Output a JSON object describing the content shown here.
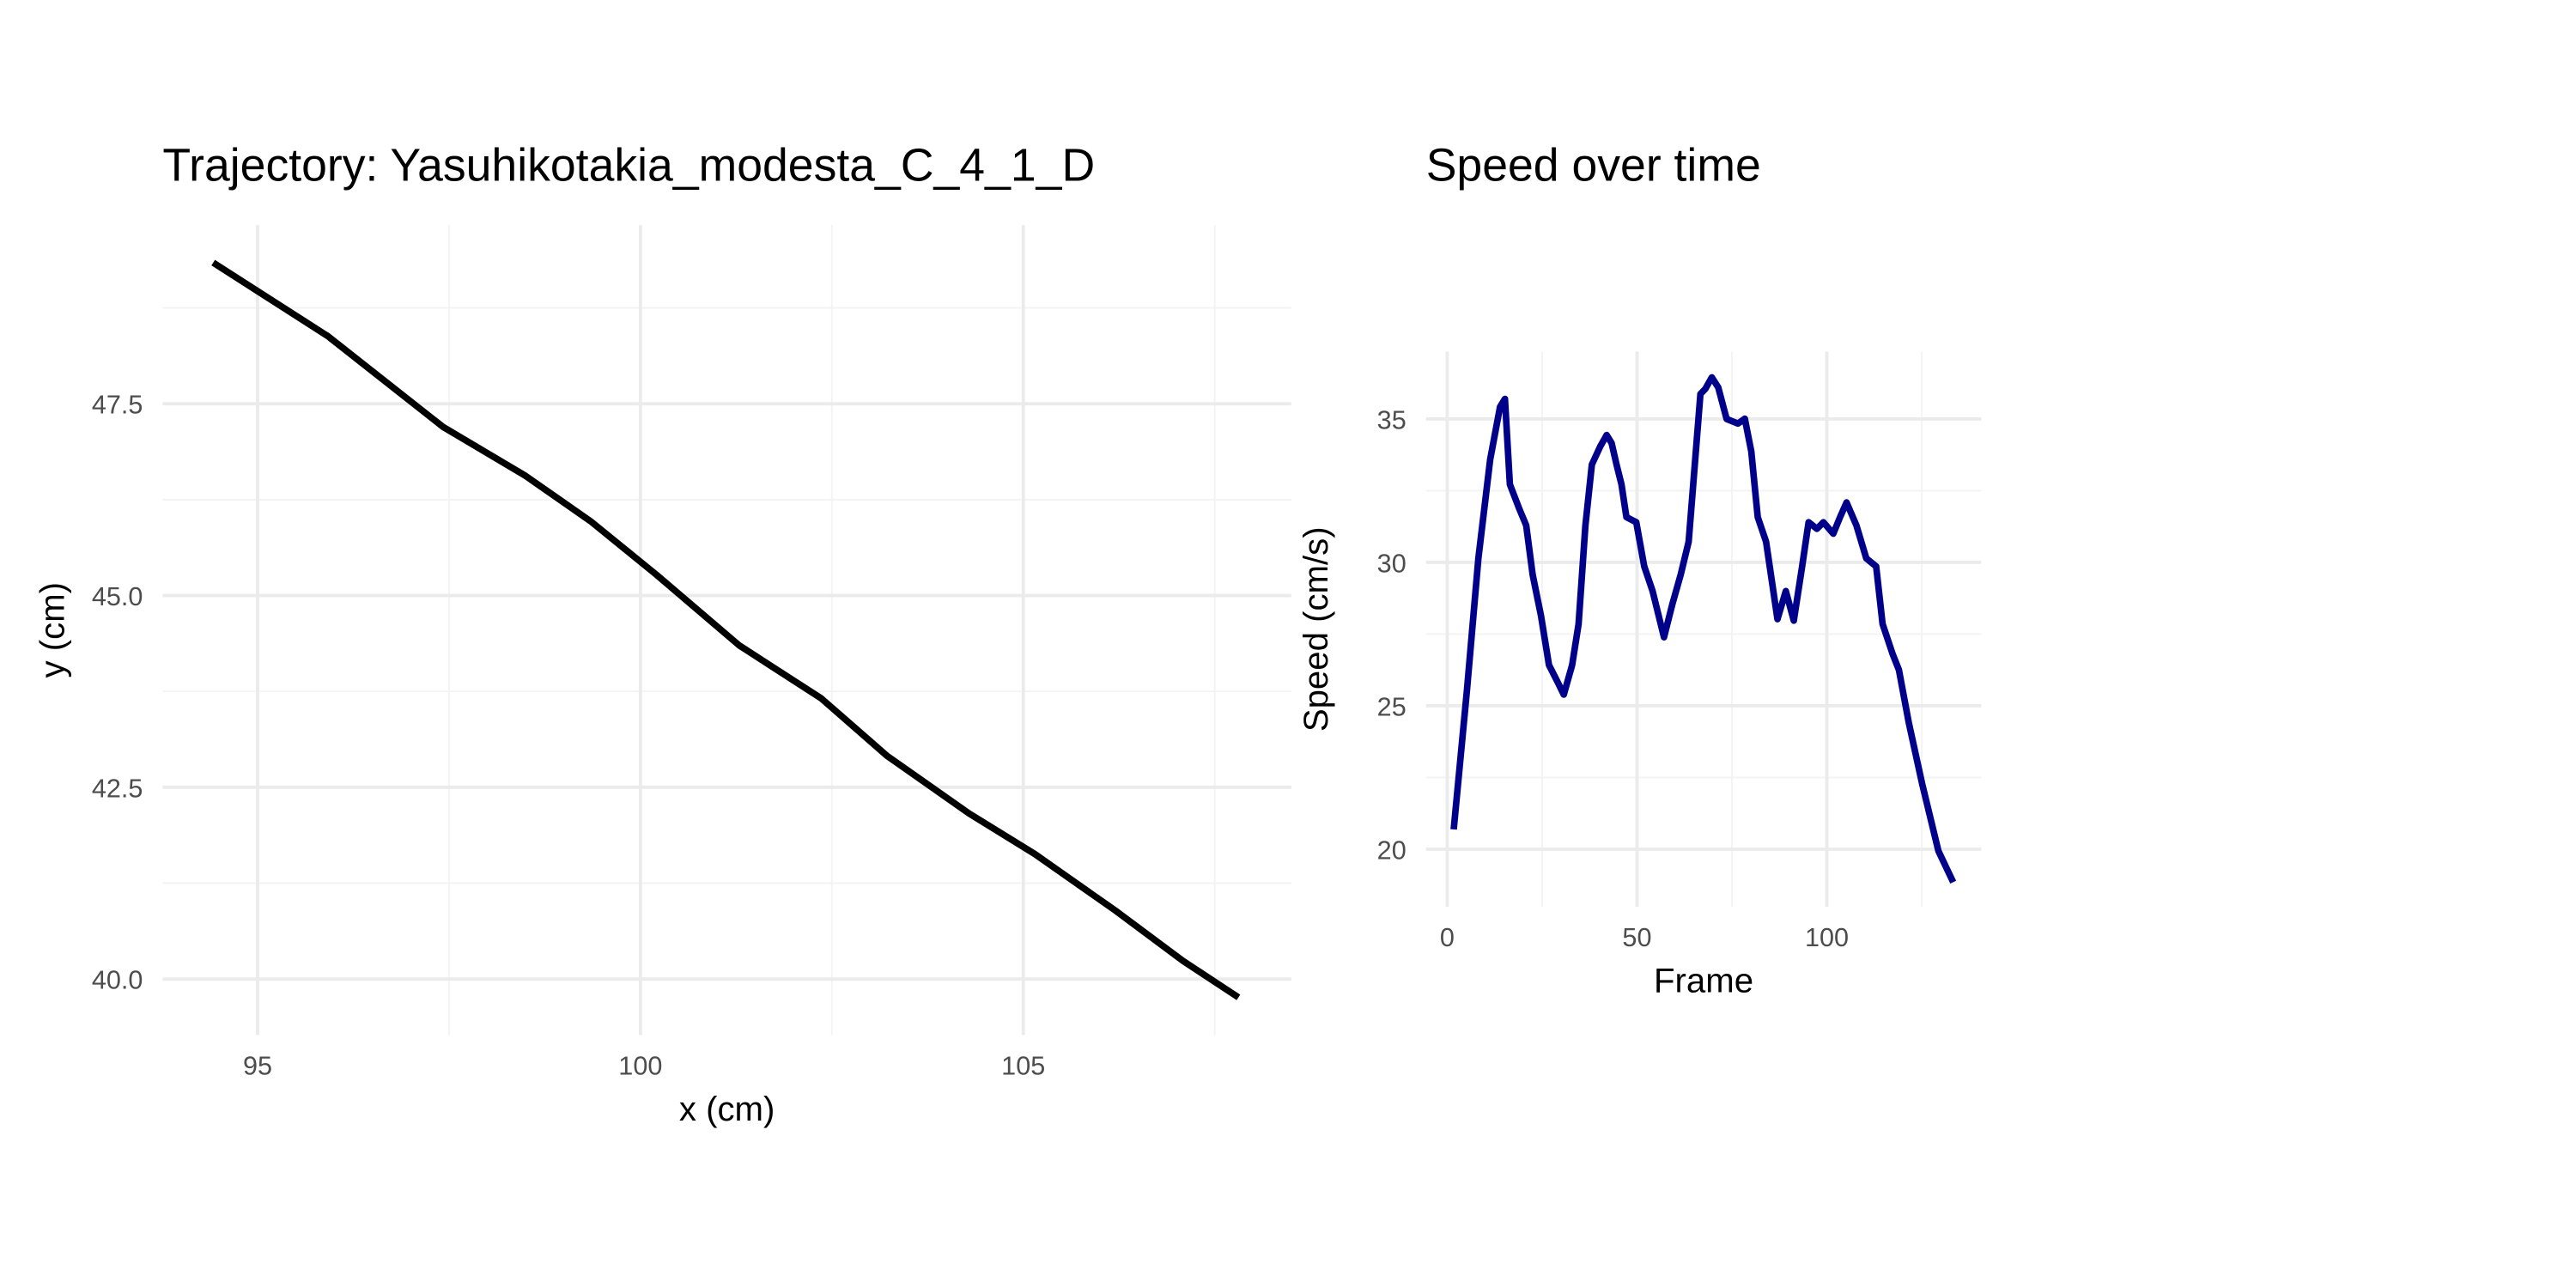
{
  "chart_data": [
    {
      "type": "line",
      "title": "Trajectory: Yasuhikotakia_modesta_C_4_1_D",
      "x_label": "x (cm)",
      "y_label": "y (cm)",
      "x": [
        94.42,
        95.92,
        97.42,
        98.5,
        99.36,
        100.21,
        101.29,
        102.36,
        103.22,
        104.29,
        105.15,
        106.22,
        107.08,
        107.81
      ],
      "values": [
        49.34,
        48.38,
        47.2,
        46.56,
        45.96,
        45.27,
        44.35,
        43.66,
        42.91,
        42.16,
        41.63,
        40.88,
        40.24,
        39.76
      ],
      "color": "#000000",
      "xlim": [
        93.76,
        108.5
      ],
      "ylim": [
        39.27,
        49.83
      ],
      "xticks": [
        95,
        100,
        105
      ],
      "yticks": [
        {
          "value": 40,
          "label": "40.0"
        },
        42.5,
        {
          "value": 45,
          "label": "45.0"
        },
        47.5
      ],
      "grid": true
    },
    {
      "type": "line",
      "title": "Speed over time",
      "x_label": "Frame",
      "y_label": "Speed (cm/s)",
      "x": [
        1.7,
        5.2,
        8.2,
        11.3,
        13.9,
        15.2,
        16.5,
        19,
        20.8,
        22.5,
        24.7,
        26.8,
        29,
        30.7,
        32.9,
        34.6,
        36.4,
        38.1,
        40.3,
        42,
        43.3,
        44.6,
        45.9,
        47.2,
        49.8,
        51.9,
        54.1,
        57.1,
        59.3,
        61.5,
        63.6,
        66.7,
        68,
        69.7,
        71.4,
        73.6,
        76.6,
        78.4,
        80.1,
        81.8,
        84,
        87,
        89.2,
        91.3,
        93.5,
        95.2,
        97.4,
        99.1,
        101.7,
        103.5,
        105.2,
        107.8,
        110.4,
        113,
        114.7,
        117.3,
        119,
        121.6,
        125.1,
        129.4,
        133.3
      ],
      "values": [
        20.69,
        25.56,
        30.14,
        33.58,
        35.42,
        35.7,
        32.72,
        31.86,
        31.29,
        29.57,
        28.14,
        26.42,
        25.85,
        25.39,
        26.42,
        27.85,
        31.29,
        33.41,
        34.04,
        34.44,
        34.16,
        33.41,
        32.72,
        31.58,
        31.4,
        29.86,
        29,
        27.39,
        28.54,
        29.57,
        30.72,
        35.87,
        36.05,
        36.45,
        36.1,
        35.0,
        34.84,
        35.01,
        33.87,
        31.58,
        30.72,
        28.02,
        29,
        27.97,
        29.86,
        31.4,
        31.17,
        31.4,
        31.0,
        31.58,
        32.09,
        31.29,
        30.14,
        29.86,
        27.85,
        26.82,
        26.25,
        24.41,
        22.29,
        19.94,
        18.85
      ],
      "color": "#00008b",
      "xlim": [
        -5.6,
        140.7
      ],
      "ylim": [
        17.99,
        37.35
      ],
      "xticks": [
        0,
        50,
        100
      ],
      "yticks": [
        20,
        25,
        30,
        35
      ],
      "grid": true
    }
  ]
}
